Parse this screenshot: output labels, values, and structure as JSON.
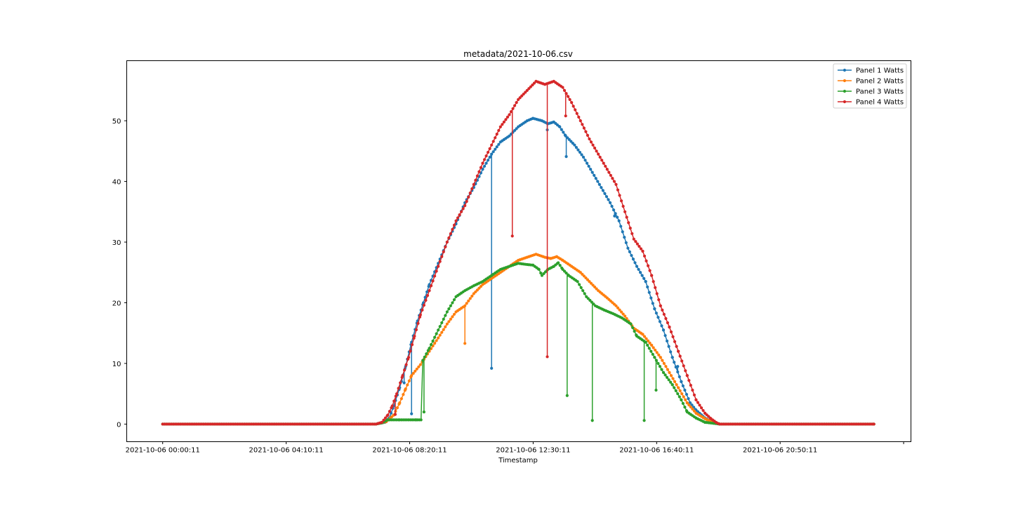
{
  "chart_data": {
    "type": "line",
    "title": "metadata/2021-10-06.csv",
    "xlabel": "Timestamp",
    "ylabel": "",
    "xlim_hours": [
      -1.21,
      25.25
    ],
    "ylim": [
      -2.9,
      59.9
    ],
    "yticks": [
      0,
      10,
      20,
      30,
      40,
      50
    ],
    "xticks": [
      {
        "label": "2021-10-06 00:00:11",
        "hour": 0.003
      },
      {
        "label": "2021-10-06 04:10:11",
        "hour": 4.17
      },
      {
        "label": "2021-10-06 08:20:11",
        "hour": 8.336
      },
      {
        "label": "2021-10-06 12:30:11",
        "hour": 12.503
      },
      {
        "label": "2021-10-06 16:40:11",
        "hour": 16.67
      },
      {
        "label": "2021-10-06 20:50:11",
        "hour": 20.836
      },
      {
        "label": "",
        "hour": 25.003
      }
    ],
    "legend_position": "top-right",
    "grid": false,
    "series": [
      {
        "name": "Panel 1 Watts",
        "color": "#1f77b4",
        "points": [
          [
            0.003,
            0
          ],
          [
            7.2,
            0
          ],
          [
            7.5,
            0.3
          ],
          [
            7.65,
            1.0
          ],
          [
            7.8,
            3.0
          ],
          [
            8.0,
            6.0
          ],
          [
            8.2,
            9.5
          ],
          [
            8.4,
            13.5
          ],
          [
            8.6,
            17.0
          ],
          [
            8.8,
            20.0
          ],
          [
            9.0,
            23.0
          ],
          [
            9.3,
            26.5
          ],
          [
            9.6,
            30.0
          ],
          [
            9.9,
            33.0
          ],
          [
            10.2,
            36.5
          ],
          [
            10.5,
            39.0
          ],
          [
            10.8,
            42.0
          ],
          [
            11.1,
            44.5
          ],
          [
            11.4,
            46.5
          ],
          [
            11.7,
            47.5
          ],
          [
            12.0,
            49.0
          ],
          [
            12.3,
            50.0
          ],
          [
            12.5,
            50.4
          ],
          [
            12.8,
            50.0
          ],
          [
            13.0,
            49.5
          ],
          [
            13.2,
            49.8
          ],
          [
            13.4,
            49.0
          ],
          [
            13.6,
            47.5
          ],
          [
            13.9,
            46.0
          ],
          [
            14.2,
            44.0
          ],
          [
            14.5,
            41.5
          ],
          [
            14.8,
            39.0
          ],
          [
            15.1,
            36.5
          ],
          [
            15.4,
            33.5
          ],
          [
            15.7,
            29.0
          ],
          [
            16.0,
            26.0
          ],
          [
            16.3,
            23.5
          ],
          [
            16.6,
            19.0
          ],
          [
            16.9,
            15.5
          ],
          [
            17.2,
            11.0
          ],
          [
            17.5,
            7.0
          ],
          [
            17.8,
            3.5
          ],
          [
            18.0,
            2.3
          ],
          [
            18.3,
            1.0
          ],
          [
            18.6,
            0.2
          ],
          [
            18.8,
            0
          ],
          [
            24.0,
            0
          ]
        ],
        "dips": [
          [
            8.15,
            6.8
          ],
          [
            8.4,
            1.7
          ],
          [
            11.1,
            9.2
          ],
          [
            12.98,
            48.5
          ],
          [
            13.62,
            44.1
          ],
          [
            15.25,
            34.3
          ],
          [
            17.38,
            9.5
          ]
        ]
      },
      {
        "name": "Panel 2 Watts",
        "color": "#ff7f0e",
        "points": [
          [
            0.003,
            0
          ],
          [
            7.2,
            0
          ],
          [
            7.55,
            0.4
          ],
          [
            7.8,
            1.5
          ],
          [
            8.0,
            3.5
          ],
          [
            8.2,
            5.8
          ],
          [
            8.4,
            8.0
          ],
          [
            8.7,
            9.8
          ],
          [
            9.0,
            12.0
          ],
          [
            9.3,
            14.2
          ],
          [
            9.6,
            16.5
          ],
          [
            9.9,
            18.5
          ],
          [
            10.2,
            19.5
          ],
          [
            10.5,
            21.5
          ],
          [
            10.8,
            23.0
          ],
          [
            11.1,
            24.0
          ],
          [
            11.4,
            25.0
          ],
          [
            11.7,
            26.0
          ],
          [
            12.0,
            27.0
          ],
          [
            12.3,
            27.5
          ],
          [
            12.6,
            28.0
          ],
          [
            12.9,
            27.5
          ],
          [
            13.1,
            27.3
          ],
          [
            13.3,
            27.6
          ],
          [
            13.5,
            27.0
          ],
          [
            13.8,
            26.0
          ],
          [
            14.1,
            25.0
          ],
          [
            14.4,
            23.5
          ],
          [
            14.7,
            22.0
          ],
          [
            15.0,
            20.8
          ],
          [
            15.3,
            19.5
          ],
          [
            15.6,
            17.8
          ],
          [
            15.9,
            15.8
          ],
          [
            16.2,
            14.8
          ],
          [
            16.5,
            13.0
          ],
          [
            16.8,
            11.0
          ],
          [
            17.1,
            8.5
          ],
          [
            17.4,
            6.0
          ],
          [
            17.7,
            3.5
          ],
          [
            18.0,
            1.8
          ],
          [
            18.3,
            0.9
          ],
          [
            18.6,
            0.2
          ],
          [
            18.8,
            0
          ],
          [
            24.0,
            0
          ]
        ],
        "dips": [
          [
            10.2,
            13.3
          ]
        ]
      },
      {
        "name": "Panel 3 Watts",
        "color": "#2ca02c",
        "points": [
          [
            0.003,
            0
          ],
          [
            7.2,
            0
          ],
          [
            7.4,
            0.2
          ],
          [
            7.6,
            0.7
          ],
          [
            8.0,
            0.7
          ],
          [
            8.6,
            0.7
          ],
          [
            8.72,
            0.7
          ],
          [
            8.78,
            10.5
          ],
          [
            9.0,
            12.5
          ],
          [
            9.3,
            15.5
          ],
          [
            9.6,
            18.5
          ],
          [
            9.9,
            21.0
          ],
          [
            10.2,
            22.0
          ],
          [
            10.5,
            22.8
          ],
          [
            10.8,
            23.5
          ],
          [
            11.1,
            24.5
          ],
          [
            11.4,
            25.5
          ],
          [
            11.7,
            26.0
          ],
          [
            12.0,
            26.5
          ],
          [
            12.3,
            26.3
          ],
          [
            12.5,
            26.2
          ],
          [
            12.7,
            25.5
          ],
          [
            12.8,
            24.5
          ],
          [
            13.0,
            25.5
          ],
          [
            13.2,
            26.0
          ],
          [
            13.35,
            26.6
          ],
          [
            13.5,
            25.5
          ],
          [
            13.7,
            24.5
          ],
          [
            14.0,
            23.5
          ],
          [
            14.3,
            21.0
          ],
          [
            14.6,
            19.5
          ],
          [
            14.9,
            18.8
          ],
          [
            15.2,
            18.2
          ],
          [
            15.5,
            17.5
          ],
          [
            15.8,
            16.5
          ],
          [
            16.0,
            14.5
          ],
          [
            16.3,
            13.5
          ],
          [
            16.6,
            11.0
          ],
          [
            16.9,
            8.5
          ],
          [
            17.2,
            6.5
          ],
          [
            17.5,
            4.0
          ],
          [
            17.7,
            2.0
          ],
          [
            18.0,
            1.0
          ],
          [
            18.3,
            0.3
          ],
          [
            18.8,
            0
          ],
          [
            24.0,
            0
          ]
        ],
        "dips": [
          [
            8.55,
            0.7
          ],
          [
            8.82,
            2.0
          ],
          [
            13.65,
            4.7
          ],
          [
            14.5,
            0.6
          ],
          [
            16.25,
            0.6
          ],
          [
            16.65,
            5.6
          ]
        ]
      },
      {
        "name": "Panel 4 Watts",
        "color": "#d62728",
        "points": [
          [
            0.003,
            0
          ],
          [
            7.2,
            0
          ],
          [
            7.4,
            0.3
          ],
          [
            7.6,
            1.5
          ],
          [
            7.75,
            3.0
          ],
          [
            7.9,
            5.0
          ],
          [
            8.1,
            8.0
          ],
          [
            8.3,
            11.0
          ],
          [
            8.5,
            14.5
          ],
          [
            8.7,
            18.0
          ],
          [
            9.0,
            22.0
          ],
          [
            9.3,
            26.0
          ],
          [
            9.6,
            30.0
          ],
          [
            9.9,
            33.5
          ],
          [
            10.2,
            36.0
          ],
          [
            10.5,
            39.5
          ],
          [
            10.8,
            43.0
          ],
          [
            11.1,
            46.0
          ],
          [
            11.4,
            49.0
          ],
          [
            11.7,
            51.0
          ],
          [
            12.0,
            53.5
          ],
          [
            12.3,
            55.0
          ],
          [
            12.6,
            56.5
          ],
          [
            12.9,
            56.0
          ],
          [
            13.2,
            56.5
          ],
          [
            13.5,
            55.5
          ],
          [
            13.8,
            53.0
          ],
          [
            14.1,
            50.0
          ],
          [
            14.4,
            47.0
          ],
          [
            14.7,
            44.5
          ],
          [
            15.0,
            42.0
          ],
          [
            15.3,
            39.5
          ],
          [
            15.6,
            35.0
          ],
          [
            15.9,
            30.5
          ],
          [
            16.2,
            28.5
          ],
          [
            16.5,
            24.5
          ],
          [
            16.8,
            19.5
          ],
          [
            17.1,
            16.0
          ],
          [
            17.4,
            12.0
          ],
          [
            17.7,
            8.0
          ],
          [
            18.0,
            4.0
          ],
          [
            18.3,
            1.8
          ],
          [
            18.5,
            0.9
          ],
          [
            18.7,
            0.2
          ],
          [
            18.8,
            0
          ],
          [
            24.0,
            0
          ]
        ],
        "dips": [
          [
            7.85,
            1.6
          ],
          [
            11.8,
            31.0
          ],
          [
            12.98,
            11.1
          ],
          [
            13.6,
            50.8
          ]
        ]
      }
    ]
  }
}
